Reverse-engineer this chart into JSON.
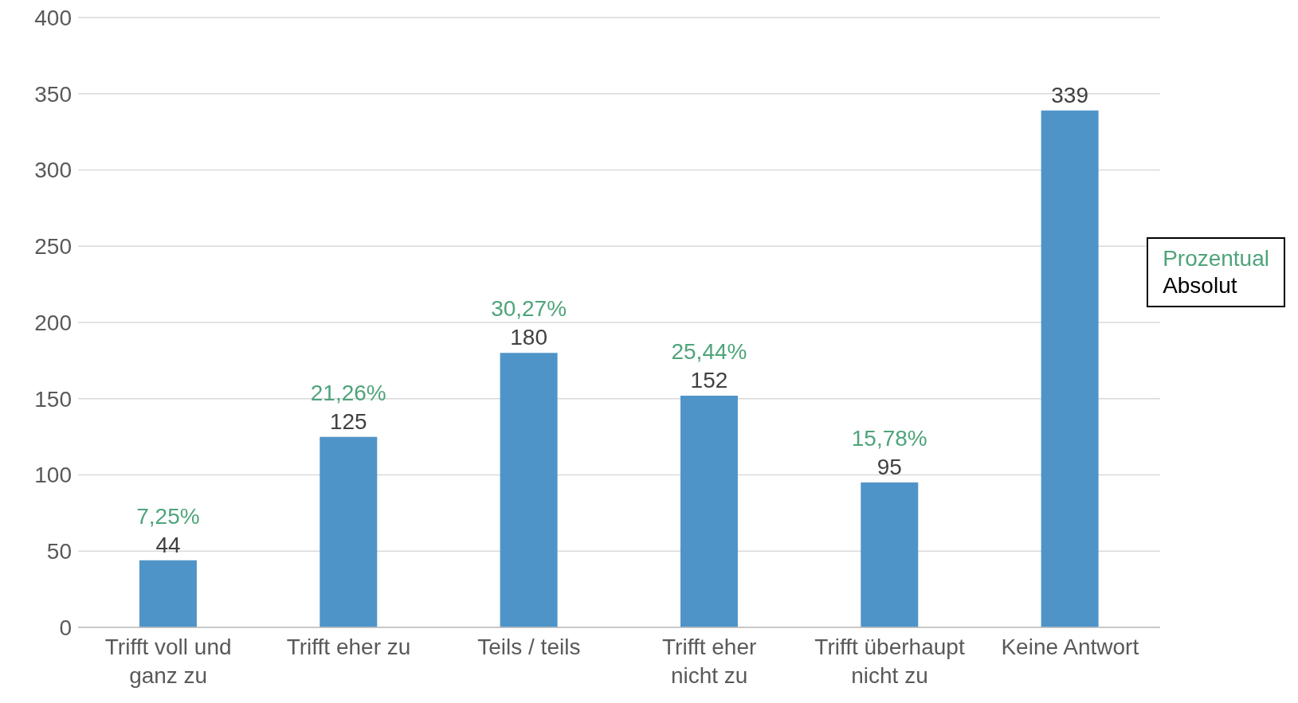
{
  "chart_data": {
    "type": "bar",
    "categories": [
      "Trifft voll und ganz zu",
      "Trifft eher zu",
      "Teils / teils",
      "Trifft eher nicht zu",
      "Trifft überhaupt nicht zu",
      "Keine Antwort"
    ],
    "series": [
      {
        "name": "Absolut",
        "color": "#4f94c8",
        "values": [
          44,
          125,
          180,
          152,
          95,
          339
        ]
      }
    ],
    "ylim": [
      0,
      400
    ],
    "yticks": [
      0,
      50,
      100,
      150,
      200,
      250,
      300,
      350,
      400
    ],
    "grid": "y",
    "data_labels": true,
    "legend": "right",
    "legend_title": "Prozentual",
    "annotations": [
      {
        "text": "7,25%",
        "x": "Trifft voll und ganz zu",
        "y": 44
      },
      {
        "text": "21,26%",
        "x": "Trifft eher zu",
        "y": 125
      },
      {
        "text": "30,27%",
        "x": "Teils / teils",
        "y": 180
      },
      {
        "text": "25,44%",
        "x": "Trifft eher nicht zu",
        "y": 152
      },
      {
        "text": "15,78%",
        "x": "Trifft überhaupt nicht zu",
        "y": 95
      }
    ]
  }
}
